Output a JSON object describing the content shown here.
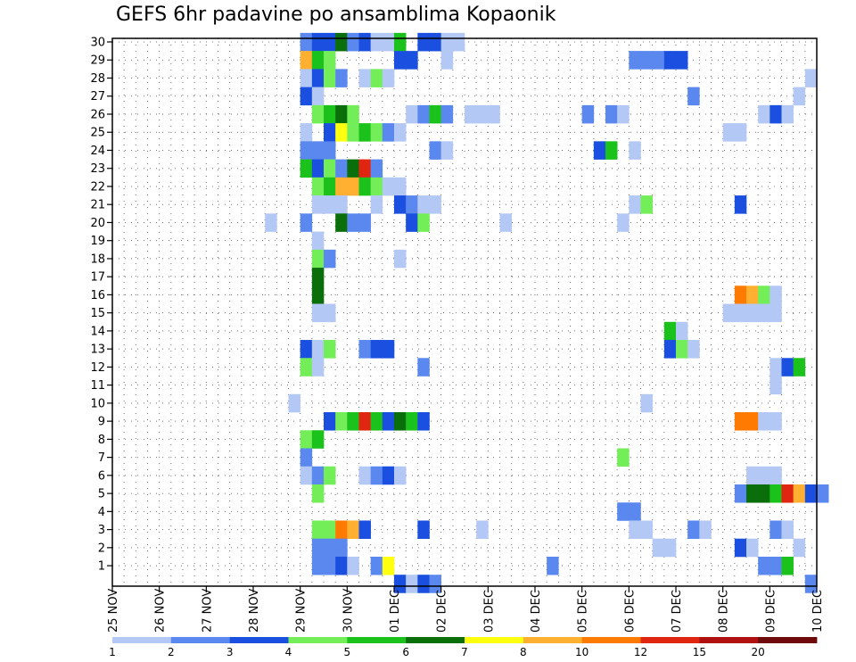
{
  "chart_data": {
    "type": "heatmap",
    "title": "GEFS 6hr padavine po ansamblima Kopaonik",
    "x_tick_labels": [
      "25 NOV",
      "26 NOV",
      "27 NOV",
      "28 NOV",
      "29 NOV",
      "30 NOV",
      "01 DEC",
      "02 DEC",
      "03 DEC",
      "04 DEC",
      "05 DEC",
      "06 DEC",
      "07 DEC",
      "08 DEC",
      "09 DEC",
      "10 DEC"
    ],
    "x_range_days": [
      0,
      15
    ],
    "y_tick_labels": [
      "1",
      "2",
      "3",
      "4",
      "5",
      "6",
      "7",
      "8",
      "9",
      "10",
      "11",
      "12",
      "13",
      "14",
      "15",
      "16",
      "17",
      "18",
      "19",
      "20",
      "21",
      "22",
      "23",
      "24",
      "25",
      "26",
      "27",
      "28",
      "29",
      "30"
    ],
    "y_range": [
      0,
      30
    ],
    "grid": true,
    "colorbar": {
      "labels": [
        "1",
        "2",
        "3",
        "4",
        "5",
        "6",
        "7",
        "8",
        "10",
        "12",
        "15",
        "20"
      ],
      "colors": [
        "#b3c8f5",
        "#5b88ee",
        "#1a4fe0",
        "#73ee58",
        "#1cc21c",
        "#0a6e0a",
        "#ffff10",
        "#ffb030",
        "#ff7a00",
        "#e02510",
        "#b01010",
        "#6e0a0a"
      ]
    },
    "legend_placement": "bottom",
    "cells": [
      [
        30,
        16,
        2
      ],
      [
        30,
        17,
        3
      ],
      [
        30,
        18,
        3
      ],
      [
        30,
        19,
        6
      ],
      [
        30,
        20,
        2
      ],
      [
        30,
        21,
        3
      ],
      [
        30,
        22,
        1
      ],
      [
        30,
        23,
        1
      ],
      [
        30,
        24,
        5
      ],
      [
        30,
        26,
        3
      ],
      [
        30,
        27,
        3
      ],
      [
        30,
        28,
        1
      ],
      [
        30,
        29,
        1
      ],
      [
        29,
        16,
        8
      ],
      [
        29,
        17,
        5
      ],
      [
        29,
        18,
        4
      ],
      [
        29,
        24,
        3
      ],
      [
        29,
        25,
        3
      ],
      [
        29,
        28,
        1
      ],
      [
        29,
        44,
        2
      ],
      [
        29,
        45,
        2
      ],
      [
        29,
        46,
        2
      ],
      [
        29,
        47,
        3
      ],
      [
        29,
        48,
        3
      ],
      [
        28,
        16,
        1
      ],
      [
        28,
        17,
        3
      ],
      [
        28,
        18,
        4
      ],
      [
        28,
        19,
        2
      ],
      [
        28,
        21,
        1
      ],
      [
        28,
        22,
        4
      ],
      [
        28,
        23,
        1
      ],
      [
        28,
        59,
        1
      ],
      [
        27,
        16,
        3
      ],
      [
        27,
        17,
        1
      ],
      [
        27,
        49,
        2
      ],
      [
        27,
        58,
        1
      ],
      [
        26,
        17,
        4
      ],
      [
        26,
        18,
        5
      ],
      [
        26,
        19,
        6
      ],
      [
        26,
        20,
        4
      ],
      [
        26,
        25,
        1
      ],
      [
        26,
        26,
        2
      ],
      [
        26,
        27,
        5
      ],
      [
        26,
        28,
        2
      ],
      [
        26,
        30,
        1
      ],
      [
        26,
        31,
        1
      ],
      [
        26,
        32,
        1
      ],
      [
        26,
        40,
        2
      ],
      [
        26,
        42,
        2
      ],
      [
        26,
        43,
        1
      ],
      [
        26,
        55,
        1
      ],
      [
        26,
        56,
        3
      ],
      [
        26,
        57,
        1
      ],
      [
        25,
        16,
        1
      ],
      [
        25,
        18,
        3
      ],
      [
        25,
        19,
        7
      ],
      [
        25,
        20,
        4
      ],
      [
        25,
        21,
        5
      ],
      [
        25,
        22,
        4
      ],
      [
        25,
        23,
        2
      ],
      [
        25,
        24,
        1
      ],
      [
        25,
        52,
        1
      ],
      [
        25,
        53,
        1
      ],
      [
        24,
        16,
        2
      ],
      [
        24,
        17,
        2
      ],
      [
        24,
        18,
        2
      ],
      [
        24,
        27,
        2
      ],
      [
        24,
        28,
        1
      ],
      [
        24,
        41,
        3
      ],
      [
        24,
        42,
        5
      ],
      [
        24,
        44,
        1
      ],
      [
        23,
        16,
        5
      ],
      [
        23,
        17,
        3
      ],
      [
        23,
        18,
        4
      ],
      [
        23,
        19,
        2
      ],
      [
        23,
        20,
        6
      ],
      [
        23,
        21,
        10
      ],
      [
        23,
        22,
        2
      ],
      [
        22,
        17,
        4
      ],
      [
        22,
        18,
        5
      ],
      [
        22,
        19,
        8
      ],
      [
        22,
        20,
        8
      ],
      [
        22,
        21,
        5
      ],
      [
        22,
        22,
        4
      ],
      [
        22,
        23,
        1
      ],
      [
        22,
        24,
        1
      ],
      [
        21,
        17,
        1
      ],
      [
        21,
        18,
        1
      ],
      [
        21,
        19,
        1
      ],
      [
        21,
        22,
        1
      ],
      [
        21,
        24,
        3
      ],
      [
        21,
        25,
        2
      ],
      [
        21,
        26,
        1
      ],
      [
        21,
        27,
        1
      ],
      [
        21,
        44,
        1
      ],
      [
        21,
        45,
        4
      ],
      [
        21,
        53,
        3
      ],
      [
        20,
        13,
        1
      ],
      [
        20,
        16,
        2
      ],
      [
        20,
        19,
        6
      ],
      [
        20,
        20,
        2
      ],
      [
        20,
        21,
        2
      ],
      [
        20,
        25,
        3
      ],
      [
        20,
        26,
        4
      ],
      [
        20,
        33,
        1
      ],
      [
        20,
        43,
        1
      ],
      [
        19,
        17,
        1
      ],
      [
        18,
        17,
        4
      ],
      [
        18,
        18,
        2
      ],
      [
        18,
        24,
        1
      ],
      [
        17,
        17,
        6
      ],
      [
        16,
        17,
        6
      ],
      [
        16,
        53,
        9
      ],
      [
        16,
        54,
        8
      ],
      [
        16,
        55,
        4
      ],
      [
        16,
        56,
        1
      ],
      [
        15,
        17,
        1
      ],
      [
        15,
        18,
        1
      ],
      [
        15,
        52,
        1
      ],
      [
        15,
        53,
        1
      ],
      [
        15,
        54,
        1
      ],
      [
        15,
        55,
        1
      ],
      [
        15,
        56,
        1
      ],
      [
        14,
        47,
        5
      ],
      [
        14,
        48,
        1
      ],
      [
        13,
        16,
        3
      ],
      [
        13,
        17,
        1
      ],
      [
        13,
        18,
        4
      ],
      [
        13,
        21,
        2
      ],
      [
        13,
        22,
        3
      ],
      [
        13,
        23,
        3
      ],
      [
        13,
        47,
        3
      ],
      [
        13,
        48,
        4
      ],
      [
        13,
        49,
        1
      ],
      [
        12,
        16,
        4
      ],
      [
        12,
        17,
        1
      ],
      [
        12,
        26,
        2
      ],
      [
        12,
        56,
        1
      ],
      [
        12,
        57,
        3
      ],
      [
        12,
        58,
        5
      ],
      [
        11,
        56,
        1
      ],
      [
        10,
        15,
        1
      ],
      [
        10,
        45,
        1
      ],
      [
        9,
        18,
        3
      ],
      [
        9,
        19,
        4
      ],
      [
        9,
        20,
        5
      ],
      [
        9,
        21,
        10
      ],
      [
        9,
        22,
        5
      ],
      [
        9,
        23,
        3
      ],
      [
        9,
        24,
        6
      ],
      [
        9,
        25,
        5
      ],
      [
        9,
        26,
        3
      ],
      [
        9,
        53,
        9
      ],
      [
        9,
        54,
        9
      ],
      [
        9,
        55,
        1
      ],
      [
        9,
        56,
        1
      ],
      [
        8,
        16,
        4
      ],
      [
        8,
        17,
        5
      ],
      [
        7,
        16,
        2
      ],
      [
        7,
        43,
        4
      ],
      [
        6,
        16,
        1
      ],
      [
        6,
        17,
        2
      ],
      [
        6,
        18,
        4
      ],
      [
        6,
        21,
        1
      ],
      [
        6,
        22,
        2
      ],
      [
        6,
        23,
        3
      ],
      [
        6,
        24,
        1
      ],
      [
        6,
        54,
        1
      ],
      [
        6,
        55,
        1
      ],
      [
        6,
        56,
        1
      ],
      [
        5,
        17,
        4
      ],
      [
        5,
        53,
        2
      ],
      [
        5,
        54,
        6
      ],
      [
        5,
        55,
        6
      ],
      [
        5,
        56,
        5
      ],
      [
        5,
        57,
        10
      ],
      [
        5,
        58,
        8
      ],
      [
        5,
        59,
        3
      ],
      [
        5,
        60,
        2
      ],
      [
        4,
        43,
        2
      ],
      [
        4,
        44,
        2
      ],
      [
        3,
        17,
        4
      ],
      [
        3,
        18,
        4
      ],
      [
        3,
        19,
        9
      ],
      [
        3,
        20,
        8
      ],
      [
        3,
        21,
        3
      ],
      [
        3,
        26,
        3
      ],
      [
        3,
        31,
        1
      ],
      [
        3,
        44,
        1
      ],
      [
        3,
        45,
        1
      ],
      [
        3,
        49,
        2
      ],
      [
        3,
        50,
        1
      ],
      [
        3,
        56,
        2
      ],
      [
        3,
        57,
        1
      ],
      [
        2,
        17,
        2
      ],
      [
        2,
        18,
        2
      ],
      [
        2,
        19,
        2
      ],
      [
        2,
        46,
        1
      ],
      [
        2,
        47,
        1
      ],
      [
        2,
        53,
        3
      ],
      [
        2,
        54,
        1
      ],
      [
        2,
        58,
        1
      ],
      [
        1,
        17,
        2
      ],
      [
        1,
        18,
        2
      ],
      [
        1,
        19,
        3
      ],
      [
        1,
        20,
        1
      ],
      [
        1,
        22,
        2
      ],
      [
        1,
        23,
        7
      ],
      [
        1,
        37,
        2
      ],
      [
        1,
        55,
        2
      ],
      [
        1,
        56,
        2
      ],
      [
        1,
        57,
        5
      ],
      [
        0,
        24,
        3
      ],
      [
        0,
        25,
        1
      ],
      [
        0,
        26,
        3
      ],
      [
        0,
        27,
        2
      ],
      [
        0,
        59,
        2
      ]
    ]
  }
}
